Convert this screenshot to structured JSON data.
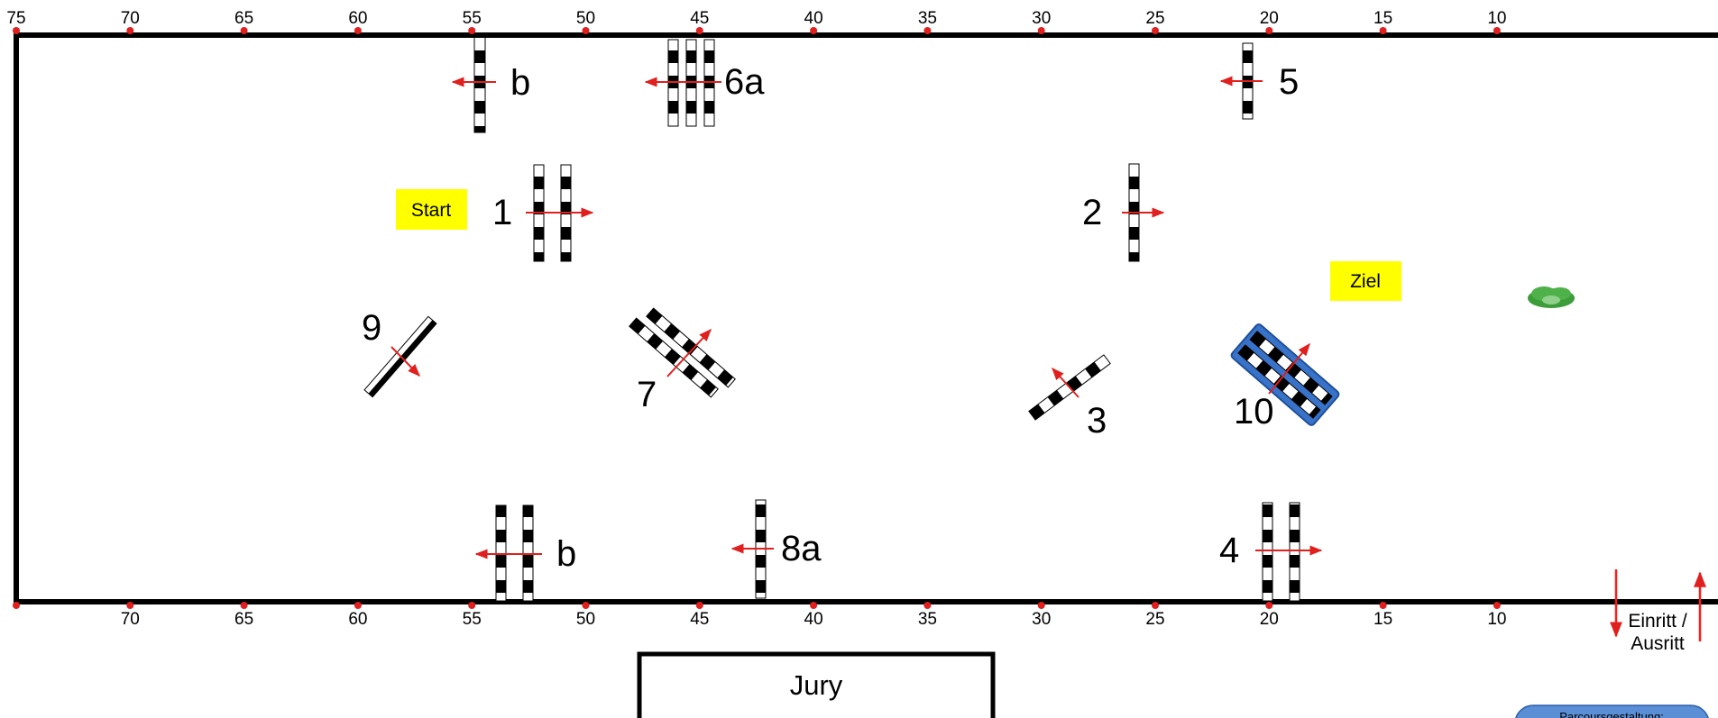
{
  "ruler_top": [
    "75",
    "70",
    "65",
    "60",
    "55",
    "50",
    "45",
    "40",
    "35",
    "30",
    "25",
    "20",
    "15",
    "10"
  ],
  "ruler_bottom": [
    "70",
    "65",
    "60",
    "55",
    "50",
    "45",
    "40",
    "35",
    "30",
    "25",
    "20",
    "15",
    "10"
  ],
  "obstacle_labels": {
    "o1": "1",
    "o2": "2",
    "o3": "3",
    "o4": "4",
    "o5": "5",
    "o6a": "6a",
    "o7": "7",
    "o8a": "8a",
    "o9": "9",
    "o10": "10",
    "b_top": "b",
    "b_bottom": "b"
  },
  "tags": {
    "start": "Start",
    "ziel": "Ziel"
  },
  "entrance": {
    "line1": "Einritt /",
    "line2": "Ausritt"
  },
  "jury": "Jury",
  "designer_box": "Parcoursgestaltung:",
  "colors": {
    "border": "#000000",
    "tick": "#e0201e",
    "arrow": "#e0201e",
    "tag_fill": "#ffff00",
    "water_fill": "#3873c9",
    "bush_fill": "#3d9d3a",
    "designer_fill": "#5a8fd6"
  }
}
